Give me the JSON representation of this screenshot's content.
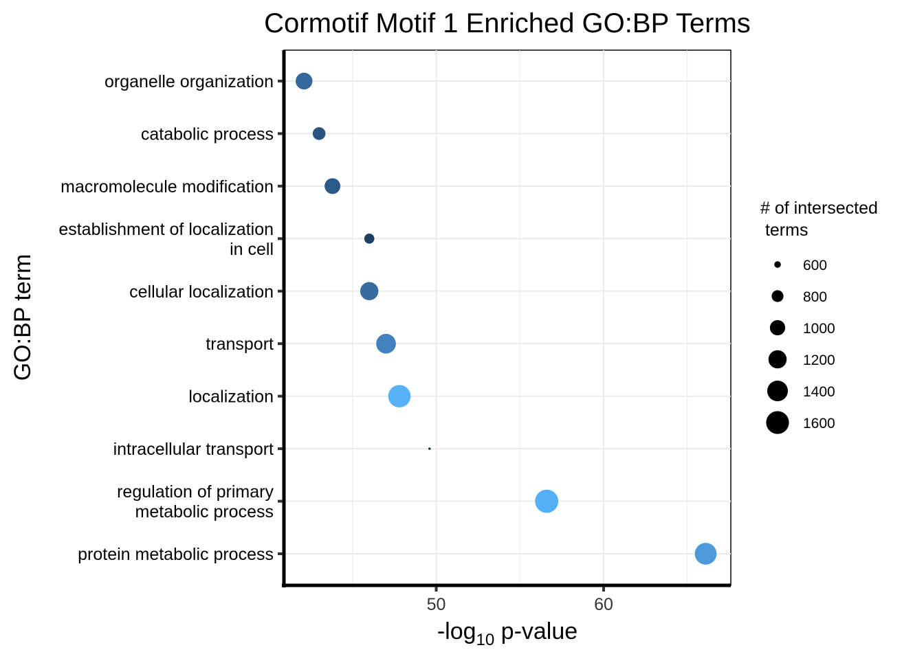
{
  "chart_data": {
    "type": "scatter",
    "title": "Cormotif Motif 1 Enriched GO:BP Terms",
    "xlabel_main": "-log",
    "xlabel_sub": "10",
    "xlabel_rest": " p-value",
    "ylabel": "GO:BP term",
    "x_ticks": [
      50,
      60
    ],
    "x_tick_labels": [
      "50",
      "60"
    ],
    "xlim": [
      40.9,
      67.6
    ],
    "grid": true,
    "legend": {
      "title_line1": "# of intersected",
      "title_line2": " terms",
      "position": "right",
      "entries": [
        {
          "label": "600",
          "value": 600
        },
        {
          "label": "800",
          "value": 800
        },
        {
          "label": "1000",
          "value": 1000
        },
        {
          "label": "1200",
          "value": 1200
        },
        {
          "label": "1400",
          "value": 1400
        },
        {
          "label": "1600",
          "value": 1600
        }
      ]
    },
    "size_domain": [
      520,
      1650
    ],
    "categories": [
      {
        "lines": [
          "organelle organization"
        ],
        "x": 42.1,
        "size": 1100,
        "color": "#35699b"
      },
      {
        "lines": [
          "catabolic process"
        ],
        "x": 43.0,
        "size": 850,
        "color": "#2a5580"
      },
      {
        "lines": [
          "macromolecule modification"
        ],
        "x": 43.8,
        "size": 1030,
        "color": "#2c5a88"
      },
      {
        "lines": [
          "establishment of localization",
          "in cell"
        ],
        "x": 46.0,
        "size": 720,
        "color": "#1d3f62"
      },
      {
        "lines": [
          "cellular localization"
        ],
        "x": 46.0,
        "size": 1200,
        "color": "#366c9f"
      },
      {
        "lines": [
          "transport"
        ],
        "x": 47.0,
        "size": 1320,
        "color": "#4181bd"
      },
      {
        "lines": [
          "localization"
        ],
        "x": 47.8,
        "size": 1560,
        "color": "#56b1f7"
      },
      {
        "lines": [
          "intracellular transport"
        ],
        "x": 49.6,
        "size": 520,
        "color": "#132b43"
      },
      {
        "lines": [
          "regulation of primary",
          "metabolic process"
        ],
        "x": 56.6,
        "size": 1640,
        "color": "#55aff5"
      },
      {
        "lines": [
          "protein metabolic process"
        ],
        "x": 66.1,
        "size": 1500,
        "color": "#4c9ada"
      }
    ]
  }
}
